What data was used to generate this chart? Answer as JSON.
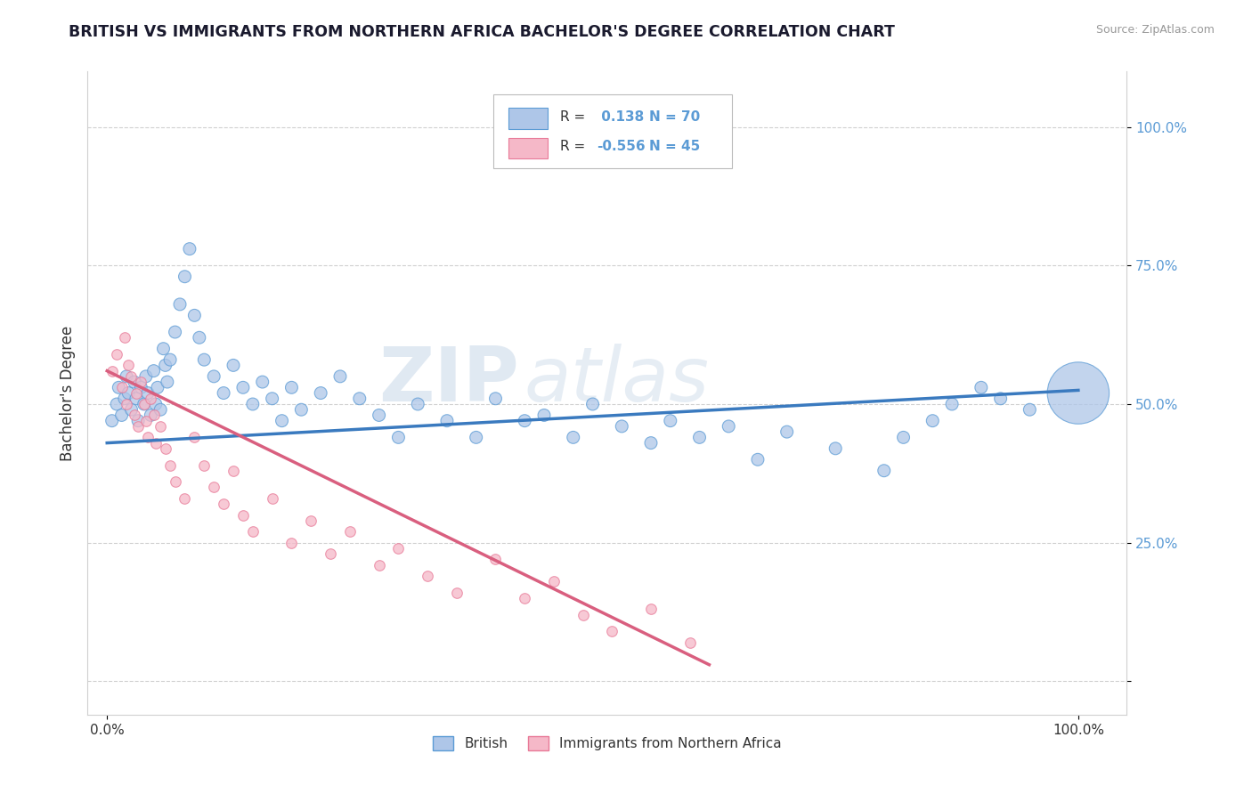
{
  "title": "BRITISH VS IMMIGRANTS FROM NORTHERN AFRICA BACHELOR'S DEGREE CORRELATION CHART",
  "source": "Source: ZipAtlas.com",
  "ylabel": "Bachelor's Degree",
  "watermark_zip": "ZIP",
  "watermark_atlas": "atlas",
  "legend_blue_R": " 0.138",
  "legend_blue_N": "70",
  "legend_pink_R": "-0.556",
  "legend_pink_N": "45",
  "legend_label_blue": "British",
  "legend_label_pink": "Immigrants from Northern Africa",
  "blue_fill": "#aec6e8",
  "pink_fill": "#f5b8c8",
  "blue_edge": "#5b9bd5",
  "pink_edge": "#e87a98",
  "blue_line": "#3a7abf",
  "pink_line": "#d95f7f",
  "title_color": "#1a1a2e",
  "ylabel_color": "#333333",
  "tick_color": "#5b9bd5",
  "grid_color": "#d0d0d0",
  "bg_color": "#ffffff",
  "blue_x": [
    0.005,
    0.01,
    0.012,
    0.015,
    0.018,
    0.02,
    0.022,
    0.025,
    0.028,
    0.03,
    0.032,
    0.035,
    0.038,
    0.04,
    0.042,
    0.045,
    0.048,
    0.05,
    0.052,
    0.055,
    0.058,
    0.06,
    0.062,
    0.065,
    0.07,
    0.075,
    0.08,
    0.085,
    0.09,
    0.095,
    0.1,
    0.11,
    0.12,
    0.13,
    0.14,
    0.15,
    0.16,
    0.17,
    0.18,
    0.19,
    0.2,
    0.22,
    0.24,
    0.26,
    0.28,
    0.3,
    0.32,
    0.35,
    0.38,
    0.4,
    0.43,
    0.45,
    0.48,
    0.5,
    0.53,
    0.56,
    0.58,
    0.61,
    0.64,
    0.67,
    0.7,
    0.75,
    0.8,
    0.82,
    0.85,
    0.87,
    0.9,
    0.92,
    0.95,
    1.0
  ],
  "blue_y": [
    0.47,
    0.5,
    0.53,
    0.48,
    0.51,
    0.55,
    0.52,
    0.49,
    0.54,
    0.51,
    0.47,
    0.53,
    0.5,
    0.55,
    0.52,
    0.48,
    0.56,
    0.5,
    0.53,
    0.49,
    0.6,
    0.57,
    0.54,
    0.58,
    0.63,
    0.68,
    0.73,
    0.78,
    0.66,
    0.62,
    0.58,
    0.55,
    0.52,
    0.57,
    0.53,
    0.5,
    0.54,
    0.51,
    0.47,
    0.53,
    0.49,
    0.52,
    0.55,
    0.51,
    0.48,
    0.44,
    0.5,
    0.47,
    0.44,
    0.51,
    0.47,
    0.48,
    0.44,
    0.5,
    0.46,
    0.43,
    0.47,
    0.44,
    0.46,
    0.4,
    0.45,
    0.42,
    0.38,
    0.44,
    0.47,
    0.5,
    0.53,
    0.51,
    0.49,
    0.52
  ],
  "blue_sizes": [
    20,
    20,
    20,
    20,
    20,
    20,
    20,
    20,
    20,
    20,
    20,
    20,
    20,
    20,
    20,
    20,
    20,
    20,
    20,
    20,
    20,
    20,
    20,
    20,
    20,
    20,
    20,
    20,
    20,
    20,
    20,
    20,
    20,
    20,
    20,
    20,
    20,
    20,
    20,
    20,
    20,
    20,
    20,
    20,
    20,
    20,
    20,
    20,
    20,
    20,
    20,
    20,
    20,
    20,
    20,
    20,
    20,
    20,
    20,
    20,
    20,
    20,
    20,
    20,
    20,
    20,
    20,
    20,
    20,
    500
  ],
  "pink_x": [
    0.005,
    0.01,
    0.015,
    0.018,
    0.02,
    0.022,
    0.025,
    0.028,
    0.03,
    0.032,
    0.035,
    0.038,
    0.04,
    0.042,
    0.045,
    0.048,
    0.05,
    0.055,
    0.06,
    0.065,
    0.07,
    0.08,
    0.09,
    0.1,
    0.11,
    0.12,
    0.13,
    0.14,
    0.15,
    0.17,
    0.19,
    0.21,
    0.23,
    0.25,
    0.28,
    0.3,
    0.33,
    0.36,
    0.4,
    0.43,
    0.46,
    0.49,
    0.52,
    0.56,
    0.6
  ],
  "pink_y": [
    0.56,
    0.59,
    0.53,
    0.62,
    0.5,
    0.57,
    0.55,
    0.48,
    0.52,
    0.46,
    0.54,
    0.5,
    0.47,
    0.44,
    0.51,
    0.48,
    0.43,
    0.46,
    0.42,
    0.39,
    0.36,
    0.33,
    0.44,
    0.39,
    0.35,
    0.32,
    0.38,
    0.3,
    0.27,
    0.33,
    0.25,
    0.29,
    0.23,
    0.27,
    0.21,
    0.24,
    0.19,
    0.16,
    0.22,
    0.15,
    0.18,
    0.12,
    0.09,
    0.13,
    0.07
  ],
  "blue_line_x0": 0.0,
  "blue_line_y0": 0.43,
  "blue_line_x1": 1.0,
  "blue_line_y1": 0.525,
  "pink_line_x0": 0.0,
  "pink_line_y0": 0.56,
  "pink_line_x1": 0.62,
  "pink_line_y1": 0.03,
  "xlim": [
    -0.02,
    1.05
  ],
  "ylim": [
    -0.06,
    1.1
  ],
  "yticks": [
    0.0,
    0.25,
    0.5,
    0.75,
    1.0
  ],
  "ytick_labels": [
    "",
    "25.0%",
    "50.0%",
    "75.0%",
    "100.0%"
  ],
  "xticks": [
    0.0,
    1.0
  ],
  "xtick_labels": [
    "0.0%",
    "100.0%"
  ]
}
